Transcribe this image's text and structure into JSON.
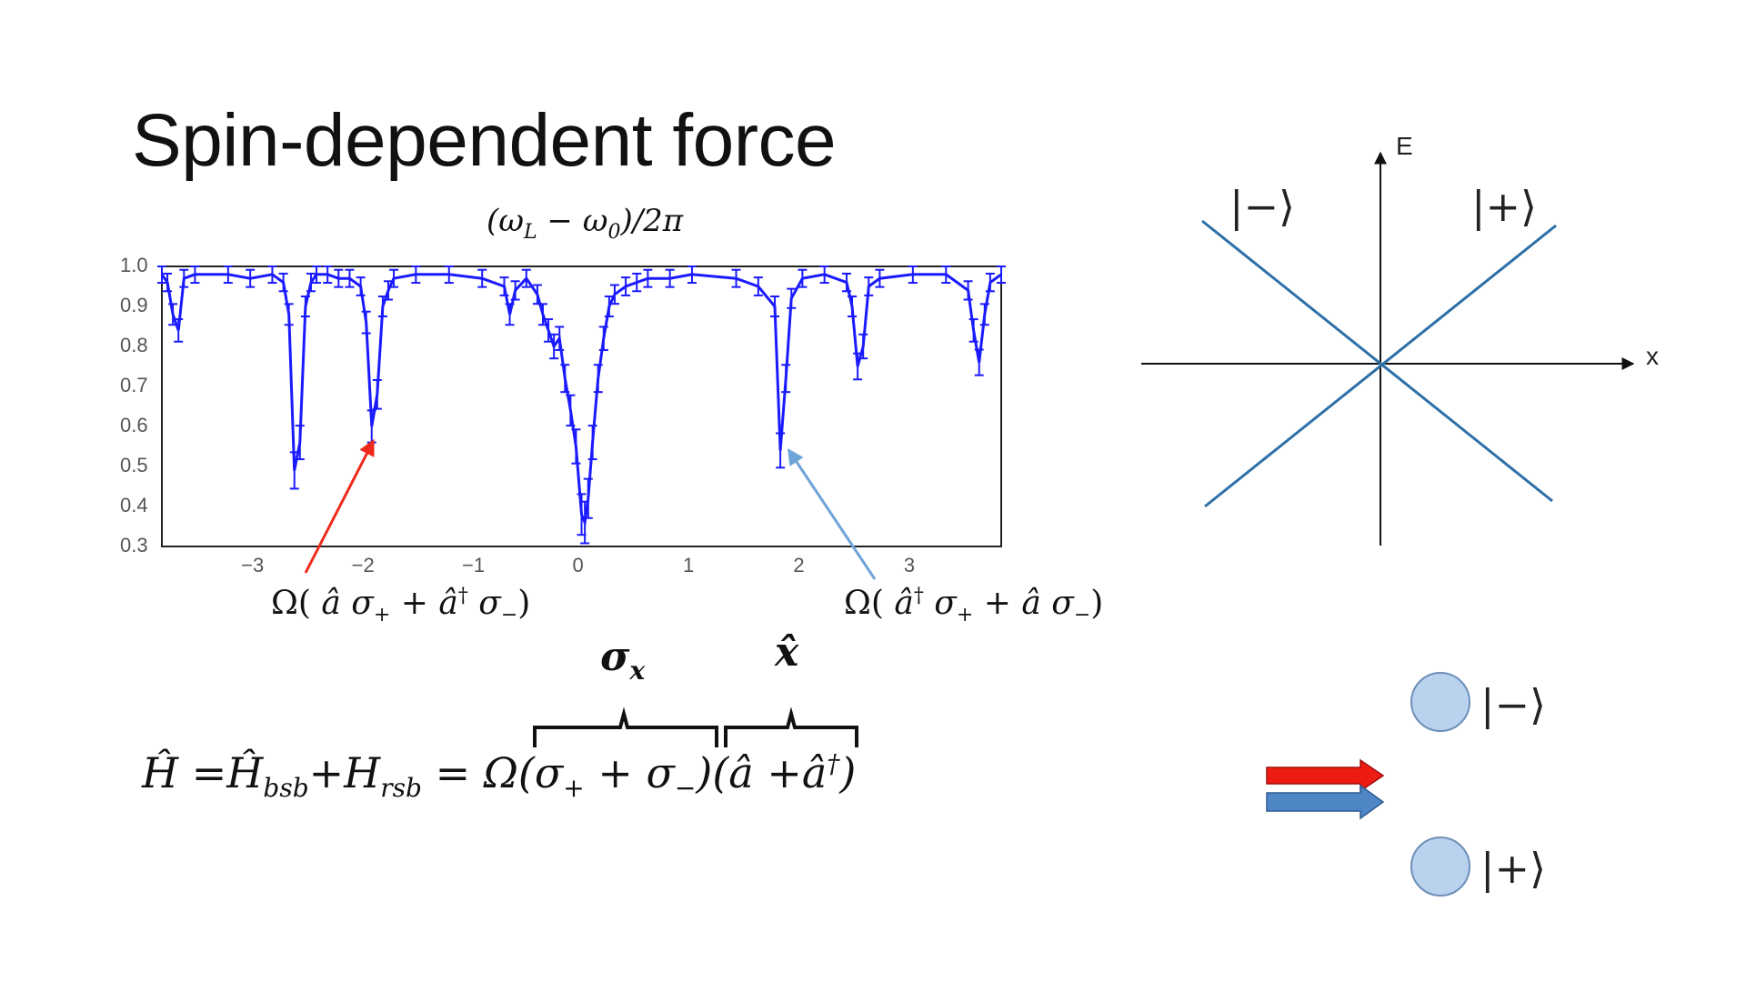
{
  "slide": {
    "title": "Spin-dependent force"
  },
  "chart_data": {
    "type": "line",
    "title": "(ω_L − ω₀)/2π",
    "xlabel": "",
    "ylabel": "",
    "xlim": [
      -3.8,
      3.8
    ],
    "ylim": [
      0.3,
      1.0
    ],
    "xticks": [
      "−3",
      "−2",
      "−1",
      "0",
      "1",
      "2",
      "3"
    ],
    "yticks": [
      "1.0",
      "0.9",
      "0.8",
      "0.7",
      "0.6",
      "0.5",
      "0.4",
      "0.3"
    ],
    "series": [
      {
        "color": "#1a1aff",
        "error_bars": true,
        "x": [
          -3.8,
          -3.75,
          -3.7,
          -3.65,
          -3.6,
          -3.5,
          -3.2,
          -3.0,
          -2.8,
          -2.7,
          -2.65,
          -2.6,
          -2.55,
          -2.5,
          -2.45,
          -2.4,
          -2.3,
          -2.2,
          -2.1,
          -2.0,
          -1.95,
          -1.9,
          -1.85,
          -1.8,
          -1.75,
          -1.7,
          -1.5,
          -1.2,
          -0.9,
          -0.7,
          -0.65,
          -0.6,
          -0.5,
          -0.4,
          -0.35,
          -0.3,
          -0.25,
          -0.2,
          -0.15,
          -0.1,
          -0.05,
          0.0,
          0.03,
          0.06,
          0.1,
          0.15,
          0.2,
          0.25,
          0.3,
          0.4,
          0.5,
          0.6,
          0.8,
          1.0,
          1.4,
          1.6,
          1.75,
          1.8,
          1.85,
          1.9,
          2.0,
          2.2,
          2.4,
          2.45,
          2.5,
          2.55,
          2.6,
          2.7,
          3.0,
          3.3,
          3.5,
          3.55,
          3.6,
          3.65,
          3.7,
          3.8
        ],
        "y": [
          0.98,
          0.96,
          0.88,
          0.84,
          0.97,
          0.98,
          0.98,
          0.97,
          0.98,
          0.96,
          0.88,
          0.49,
          0.56,
          0.9,
          0.96,
          0.98,
          0.98,
          0.97,
          0.97,
          0.95,
          0.86,
          0.6,
          0.68,
          0.9,
          0.94,
          0.97,
          0.98,
          0.98,
          0.97,
          0.95,
          0.88,
          0.94,
          0.97,
          0.93,
          0.88,
          0.84,
          0.8,
          0.82,
          0.72,
          0.64,
          0.55,
          0.38,
          0.36,
          0.42,
          0.56,
          0.72,
          0.82,
          0.9,
          0.93,
          0.95,
          0.96,
          0.97,
          0.97,
          0.98,
          0.97,
          0.95,
          0.9,
          0.54,
          0.72,
          0.92,
          0.97,
          0.98,
          0.96,
          0.9,
          0.75,
          0.8,
          0.95,
          0.97,
          0.98,
          0.98,
          0.94,
          0.84,
          0.76,
          0.88,
          0.96,
          0.98
        ]
      }
    ],
    "annotations": [
      {
        "text": "Ω( â σ₊ + â† σ₋)",
        "points_to_x": -1.9,
        "arrow_color": "#ee2a1a"
      },
      {
        "text": "Ω( â† σ₊ + â σ₋)",
        "points_to_x": 1.85,
        "arrow_color": "#6fa4d8"
      }
    ]
  },
  "equations": {
    "sigma_x_label": "σ_x",
    "x_hat_label": "x̂",
    "hamiltonian": "Ĥ =Ĥ_bsb+H_rsb = Ω(σ₊ + σ₋)(â +â†)"
  },
  "energy_diagram": {
    "y_axis_label": "E",
    "x_axis_label": "x",
    "line_color": "#2e6fa6",
    "minus_state_label": "|−⟩",
    "plus_state_label": "|+⟩"
  },
  "ion_diagram": {
    "circle_color": "#b9d3ef",
    "red_arrow_color": "#ee1b12",
    "blue_arrow_color": "#4f86c6",
    "minus_state_label": "|−⟩",
    "plus_state_label": "|+⟩"
  }
}
